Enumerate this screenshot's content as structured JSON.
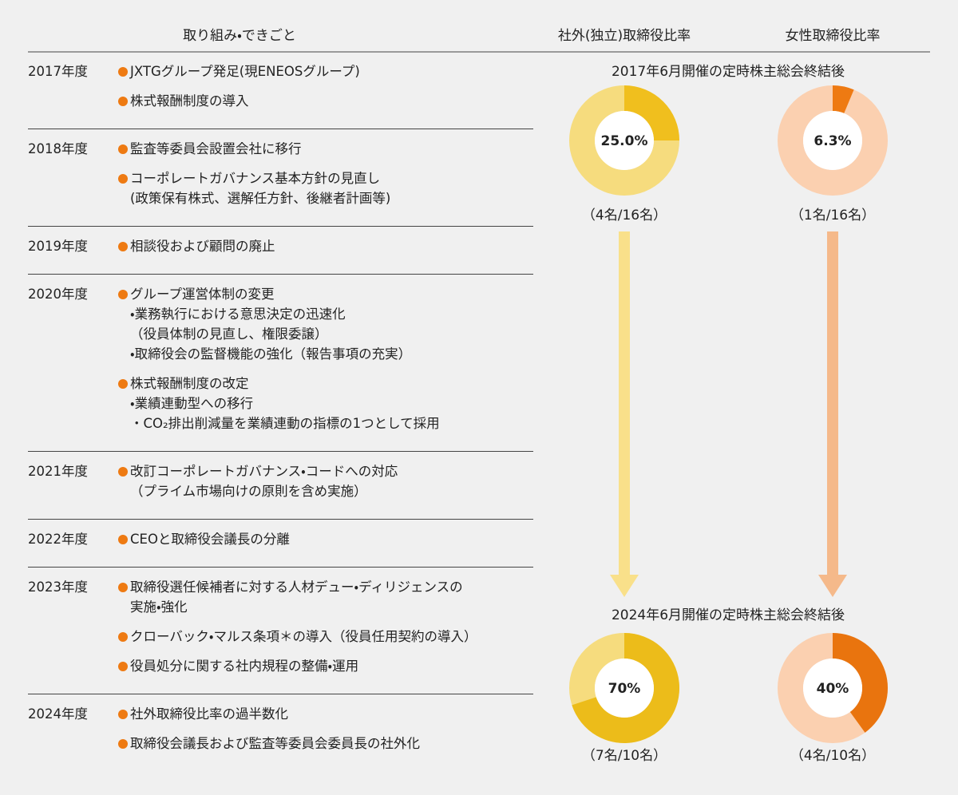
{
  "header": {
    "events": "取り組み・できごと",
    "outside": "社外(独立)取締役比率",
    "female": "女性取締役比率"
  },
  "rows": [
    {
      "year": "2017年度",
      "items": [
        {
          "lines": [
            "JXTGグループ発足(現ENEOSグループ)"
          ]
        },
        {
          "lines": [
            "株式報酬制度の導入"
          ]
        }
      ]
    },
    {
      "year": "2018年度",
      "items": [
        {
          "lines": [
            "監査等委員会設置会社に移行"
          ]
        },
        {
          "lines": [
            "コーポレートガバナンス基本方針の見直し",
            "(政策保有株式、選解任方針、後継者計画等)"
          ]
        }
      ]
    },
    {
      "year": "2019年度",
      "items": [
        {
          "lines": [
            "相談役および顧問の廃止"
          ]
        }
      ]
    },
    {
      "year": "2020年度",
      "items": [
        {
          "lines": [
            "グループ運営体制の変更",
            "・業務執行における意思決定の迅速化",
            "（役員体制の見直し、権限委譲）",
            "・取締役会の監督機能の強化（報告事項の充実）"
          ]
        },
        {
          "lines": [
            "株式報酬制度の改定",
            "・業績連動型への移行",
            "・CO₂排出削減量を業績連動の指標の1つとして採用"
          ]
        }
      ]
    },
    {
      "year": "2021年度",
      "items": [
        {
          "lines": [
            "改訂コーポレートガバナンス・コードへの対応",
            "（プライム市場向けの原則を含め実施）"
          ]
        }
      ]
    },
    {
      "year": "2022年度",
      "items": [
        {
          "lines": [
            "CEOと取締役会議長の分離"
          ]
        }
      ]
    },
    {
      "year": "2023年度",
      "items": [
        {
          "lines": [
            "取締役選任候補者に対する人材デュー・ディリジェンスの",
            "実施・強化"
          ]
        },
        {
          "lines": [
            "クローバック・マルス条項＊の導入（役員任用契約の導入）"
          ]
        },
        {
          "lines": [
            "役員処分に関する社内規程の整備・運用"
          ]
        }
      ]
    },
    {
      "year": "2024年度",
      "items": [
        {
          "lines": [
            "社外取締役比率の過半数化"
          ]
        },
        {
          "lines": [
            "取締役会議長および監査等委員会委員長の社外化"
          ]
        }
      ]
    }
  ],
  "snapshots": [
    {
      "caption": "2017年6月開催の定時株主総会終結後",
      "ratios": [
        {
          "value": 25.0,
          "label": "25.0%",
          "count": "（4名/16名）",
          "color": "#f0bf1e",
          "track": "#f6dc7e"
        },
        {
          "value": 6.3,
          "label": "6.3%",
          "count": "（1名/16名）",
          "color": "#ee7a12",
          "track": "#fbd0b0"
        }
      ]
    },
    {
      "caption": "2024年6月開催の定時株主総会終結後",
      "ratios": [
        {
          "value": 70,
          "label": "70%",
          "count": "（7名/10名）",
          "color": "#ecbc1a",
          "track": "#f6dc7e"
        },
        {
          "value": 40,
          "label": "40%",
          "count": "（4名/10名）",
          "color": "#e9740e",
          "track": "#fbd0b0"
        }
      ]
    }
  ]
}
